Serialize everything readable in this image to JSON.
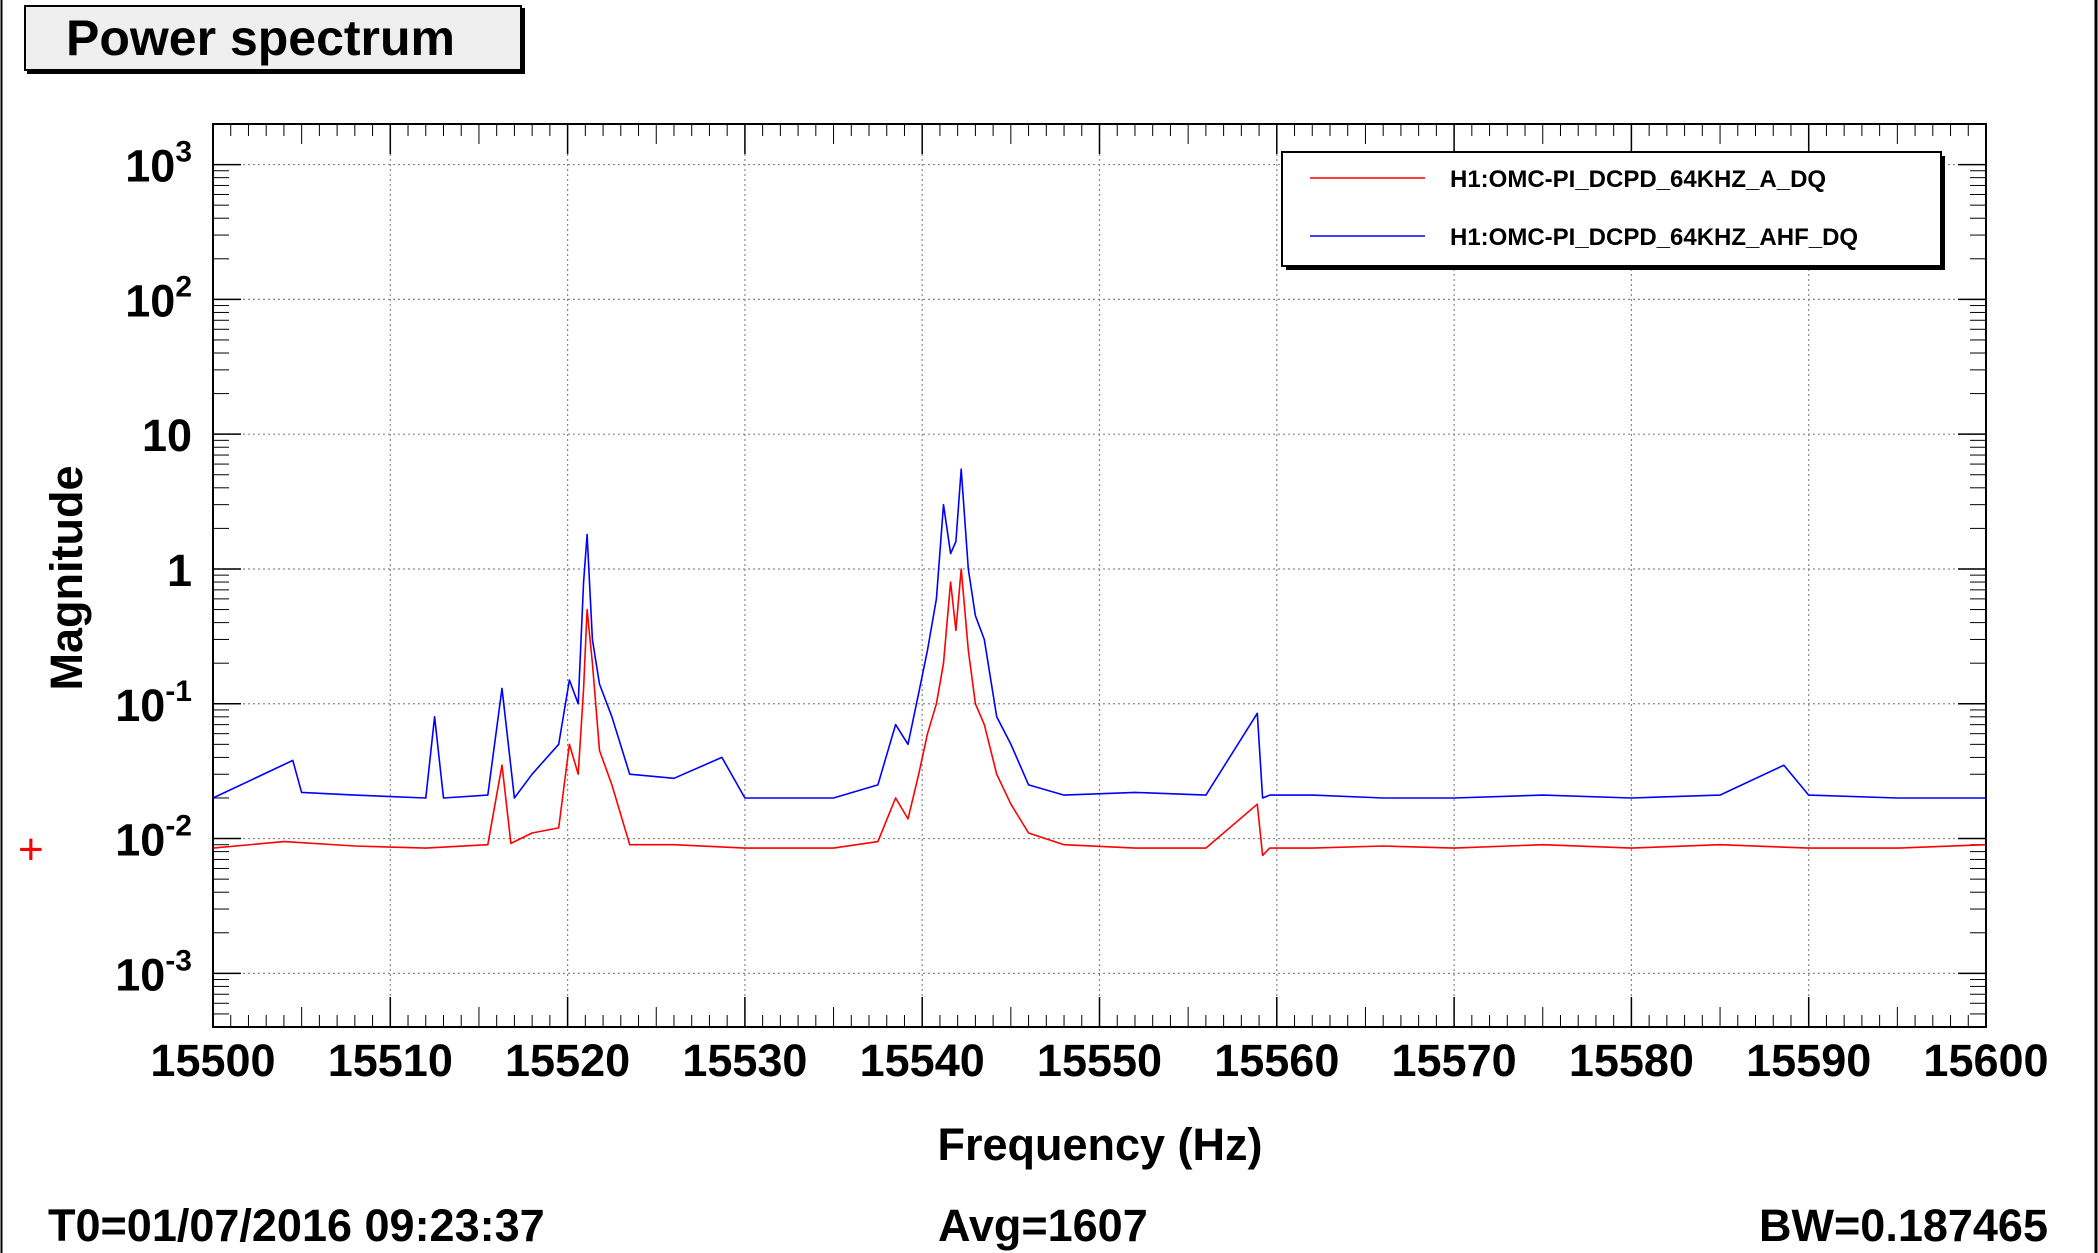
{
  "title": "Power spectrum",
  "footer": {
    "t0": "T0=01/07/2016 09:23:37",
    "avg": "Avg=1607",
    "bw": "BW=0.187465"
  },
  "chart_data": {
    "type": "line",
    "title": "Power spectrum",
    "xlabel": "Frequency (Hz)",
    "ylabel": "Magnitude",
    "xlim": [
      15500,
      15600
    ],
    "ylim": [
      0.0004,
      2000
    ],
    "y_scale": "log",
    "grid": true,
    "legend_position": "top-right",
    "x_ticks": [
      15500,
      15510,
      15520,
      15530,
      15540,
      15550,
      15560,
      15570,
      15580,
      15590,
      15600
    ],
    "y_ticks": [
      {
        "value": 0.001,
        "base": "10",
        "exp": "-3"
      },
      {
        "value": 0.01,
        "base": "10",
        "exp": "-2"
      },
      {
        "value": 0.1,
        "base": "10",
        "exp": "-1"
      },
      {
        "value": 1,
        "base": "1",
        "exp": ""
      },
      {
        "value": 10,
        "base": "10",
        "exp": ""
      },
      {
        "value": 100,
        "base": "10",
        "exp": "2"
      },
      {
        "value": 1000,
        "base": "10",
        "exp": "3"
      }
    ],
    "series": [
      {
        "name": "H1:OMC-PI_DCPD_64KHZ_A_DQ",
        "color": "#ff0000",
        "x": [
          15500,
          15504,
          15508,
          15512,
          15515.5,
          15516.3,
          15516.8,
          15518,
          15519.5,
          15520.1,
          15520.6,
          15520.9,
          15521.1,
          15521.4,
          15521.8,
          15522.5,
          15523.5,
          15526,
          15530,
          15535,
          15537.5,
          15538.5,
          15539.2,
          15539.8,
          15540.3,
          15540.8,
          15541.2,
          15541.6,
          15541.9,
          15542.2,
          15542.6,
          15543,
          15543.5,
          15544.2,
          15545,
          15546,
          15548,
          15552,
          15556,
          15558.9,
          15559.2,
          15559.6,
          15562,
          15566,
          15570,
          15575,
          15580,
          15585,
          15590,
          15595,
          15600
        ],
        "values": [
          0.0085,
          0.0095,
          0.0088,
          0.0085,
          0.009,
          0.035,
          0.0092,
          0.011,
          0.012,
          0.05,
          0.03,
          0.13,
          0.5,
          0.2,
          0.045,
          0.025,
          0.009,
          0.009,
          0.0085,
          0.0085,
          0.0095,
          0.02,
          0.014,
          0.03,
          0.06,
          0.1,
          0.2,
          0.8,
          0.35,
          1.0,
          0.25,
          0.1,
          0.07,
          0.03,
          0.018,
          0.011,
          0.009,
          0.0085,
          0.0085,
          0.018,
          0.0075,
          0.0085,
          0.0085,
          0.0088,
          0.0085,
          0.009,
          0.0085,
          0.009,
          0.0085,
          0.0085,
          0.009
        ]
      },
      {
        "name": "H1:OMC-PI_DCPD_64KHZ_AHF_DQ",
        "color": "#0000ff",
        "x": [
          15500,
          15504.5,
          15505,
          15508,
          15512,
          15512.5,
          15513,
          15515.5,
          15516.3,
          15517,
          15518,
          15519.5,
          15520.1,
          15520.6,
          15520.9,
          15521.1,
          15521.4,
          15521.8,
          15522.5,
          15523.5,
          15526,
          15528.7,
          15530,
          15535,
          15537.5,
          15538.5,
          15539.2,
          15539.8,
          15540.3,
          15540.8,
          15541.2,
          15541.6,
          15541.9,
          15542.2,
          15542.6,
          15543,
          15543.5,
          15544.2,
          15545,
          15546,
          15548,
          15552,
          15556,
          15558.9,
          15559.2,
          15559.6,
          15562,
          15566,
          15570,
          15575,
          15580,
          15585,
          15588.6,
          15590,
          15595,
          15600
        ],
        "values": [
          0.02,
          0.038,
          0.022,
          0.021,
          0.02,
          0.08,
          0.02,
          0.021,
          0.13,
          0.02,
          0.03,
          0.05,
          0.15,
          0.1,
          0.8,
          1.8,
          0.3,
          0.14,
          0.08,
          0.03,
          0.028,
          0.04,
          0.02,
          0.02,
          0.025,
          0.07,
          0.05,
          0.12,
          0.25,
          0.6,
          3.0,
          1.3,
          1.6,
          5.5,
          1.0,
          0.45,
          0.3,
          0.08,
          0.05,
          0.025,
          0.021,
          0.022,
          0.021,
          0.085,
          0.02,
          0.021,
          0.021,
          0.02,
          0.02,
          0.021,
          0.02,
          0.021,
          0.035,
          0.021,
          0.02,
          0.02
        ]
      }
    ]
  }
}
